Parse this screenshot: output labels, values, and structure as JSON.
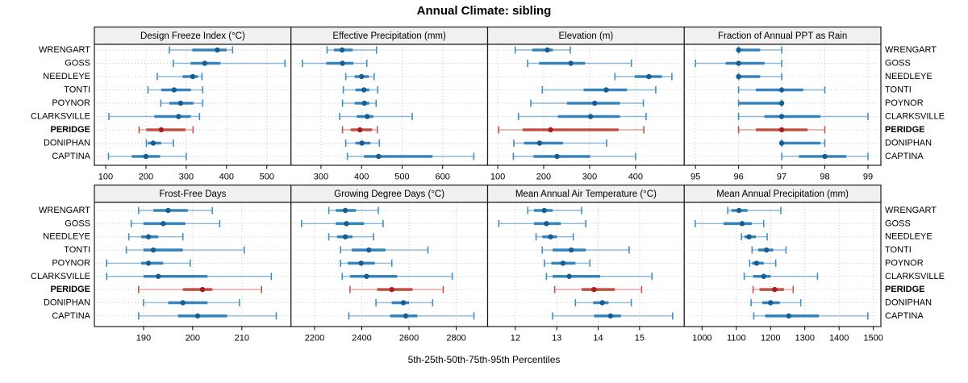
{
  "title": "Annual Climate: sibling",
  "caption": "5th-25th-50th-75th-95th Percentiles",
  "percentile_levels": [
    5,
    25,
    50,
    75,
    95
  ],
  "sites": [
    "WRENGART",
    "GOSS",
    "NEEDLEYE",
    "TONTI",
    "POYNOR",
    "CLARKSVILLE",
    "PERIDGE",
    "DONIPHAN",
    "CAPTINA"
  ],
  "highlight_site": "PERIDGE",
  "colors": {
    "blue": {
      "dot": "#155d92",
      "bar": "#2076b4",
      "whisker": "#8ab8d8",
      "cap": "#3f8fc5"
    },
    "red": {
      "dot": "#a71e22",
      "bar": "#c0392b",
      "whisker": "#e2a09a",
      "cap": "#c9534c"
    },
    "strip_bg": "#f0f0f0",
    "panel_border": "#1a1a1a",
    "grid": "#c4c4c4",
    "text": "#000000"
  },
  "chart_data": [
    {
      "type": "percentile-dotplot",
      "title": "Design Freeze Index (°C)",
      "row": 0,
      "col": 0,
      "xlim": [
        72,
        560
      ],
      "ticks": [
        100,
        200,
        300,
        400,
        500
      ],
      "values": [
        [
          258,
          315,
          377,
          400,
          415
        ],
        [
          268,
          311,
          346,
          385,
          545
        ],
        [
          228,
          291,
          316,
          329,
          339
        ],
        [
          205,
          238,
          270,
          311,
          341
        ],
        [
          237,
          258,
          286,
          318,
          341
        ],
        [
          108,
          221,
          281,
          311,
          333
        ],
        [
          183,
          201,
          238,
          298,
          317
        ],
        [
          201,
          205,
          218,
          238,
          268
        ],
        [
          107,
          165,
          200,
          235,
          300
        ]
      ]
    },
    {
      "type": "percentile-dotplot",
      "title": "Effective Precipitation (mm)",
      "row": 0,
      "col": 1,
      "xlim": [
        226,
        711
      ],
      "ticks": [
        300,
        400,
        500,
        600
      ],
      "values": [
        [
          315,
          332,
          352,
          378,
          437
        ],
        [
          254,
          313,
          353,
          380,
          413
        ],
        [
          361,
          383,
          400,
          418,
          431
        ],
        [
          355,
          385,
          406,
          419,
          440
        ],
        [
          353,
          383,
          407,
          419,
          436
        ],
        [
          346,
          388,
          414,
          429,
          525
        ],
        [
          353,
          373,
          396,
          426,
          439
        ],
        [
          361,
          385,
          401,
          422,
          444
        ],
        [
          365,
          406,
          442,
          575,
          677
        ]
      ]
    },
    {
      "type": "percentile-dotplot",
      "title": "Elevation (m)",
      "row": 0,
      "col": 2,
      "xlim": [
        78,
        506
      ],
      "ticks": [
        100,
        200,
        300,
        400
      ],
      "values": [
        [
          138,
          175,
          208,
          220,
          258
        ],
        [
          165,
          190,
          259,
          290,
          391
        ],
        [
          355,
          398,
          429,
          457,
          479
        ],
        [
          197,
          287,
          336,
          381,
          444
        ],
        [
          172,
          251,
          311,
          366,
          417
        ],
        [
          145,
          231,
          302,
          366,
          423
        ],
        [
          102,
          154,
          215,
          363,
          418
        ],
        [
          135,
          157,
          191,
          242,
          337
        ],
        [
          134,
          178,
          229,
          301,
          400
        ]
      ]
    },
    {
      "type": "percentile-dotplot",
      "title": "Fraction of Annual PPT as Rain",
      "row": 0,
      "col": 3,
      "xlim": [
        94.74,
        99.3
      ],
      "ticks": [
        95,
        96,
        97,
        98,
        99
      ],
      "values": [
        [
          96,
          96,
          96,
          96.5,
          97
        ],
        [
          95,
          95.7,
          96,
          96.6,
          97
        ],
        [
          96,
          96,
          96,
          96.5,
          97
        ],
        [
          96,
          96.4,
          97,
          97.5,
          98
        ],
        [
          96,
          96,
          97,
          97,
          97
        ],
        [
          96,
          96.6,
          97,
          97.9,
          99
        ],
        [
          96,
          96.4,
          97,
          97.6,
          98
        ],
        [
          97,
          97,
          97,
          97.9,
          98
        ],
        [
          97,
          97.4,
          98,
          98.5,
          99
        ]
      ]
    },
    {
      "type": "percentile-dotplot",
      "title": "Frost-Free Days",
      "row": 1,
      "col": 0,
      "xlim": [
        180,
        220
      ],
      "ticks": [
        190,
        200,
        210
      ],
      "values": [
        [
          189,
          192,
          195,
          199,
          204
        ],
        [
          187.5,
          190,
          194,
          198.5,
          205.5
        ],
        [
          187,
          189.5,
          191,
          193,
          198
        ],
        [
          186.5,
          190,
          192,
          198,
          210.5
        ],
        [
          182.5,
          189.5,
          191,
          194,
          199.5
        ],
        [
          182.5,
          190,
          193,
          203,
          216
        ],
        [
          189,
          198,
          202,
          204,
          214
        ],
        [
          190,
          195,
          198,
          203,
          209.5
        ],
        [
          189,
          197,
          201,
          207,
          217
        ]
      ]
    },
    {
      "type": "percentile-dotplot",
      "title": "Growing Degree Days (°C)",
      "row": 1,
      "col": 1,
      "xlim": [
        2100,
        2933
      ],
      "ticks": [
        2200,
        2400,
        2600,
        2800
      ],
      "values": [
        [
          2260,
          2290,
          2330,
          2375,
          2470
        ],
        [
          2145,
          2290,
          2335,
          2410,
          2490
        ],
        [
          2260,
          2295,
          2330,
          2360,
          2450
        ],
        [
          2310,
          2357,
          2430,
          2500,
          2680
        ],
        [
          2310,
          2340,
          2397,
          2455,
          2527
        ],
        [
          2317,
          2350,
          2420,
          2550,
          2783
        ],
        [
          2350,
          2465,
          2527,
          2615,
          2745
        ],
        [
          2460,
          2527,
          2576,
          2600,
          2700
        ],
        [
          2345,
          2520,
          2586,
          2635,
          2875
        ]
      ]
    },
    {
      "type": "percentile-dotplot",
      "title": "Mean Annual Air Temperature (°C)",
      "row": 1,
      "col": 2,
      "xlim": [
        11.33,
        16.08
      ],
      "ticks": [
        12,
        13,
        14,
        15
      ],
      "values": [
        [
          12.3,
          12.45,
          12.7,
          12.9,
          13.6
        ],
        [
          11.6,
          12.45,
          12.75,
          13.1,
          13.7
        ],
        [
          12.5,
          12.65,
          12.85,
          13.0,
          13.4
        ],
        [
          12.65,
          12.9,
          13.35,
          13.7,
          14.75
        ],
        [
          12.7,
          12.87,
          13.15,
          13.45,
          13.8
        ],
        [
          12.75,
          12.9,
          13.3,
          14.05,
          15.3
        ],
        [
          12.95,
          13.6,
          13.9,
          14.4,
          15.05
        ],
        [
          13.45,
          13.88,
          14.1,
          14.25,
          14.8
        ],
        [
          12.9,
          13.9,
          14.3,
          14.55,
          15.8
        ]
      ]
    },
    {
      "type": "percentile-dotplot",
      "title": "Mean Annual Precipitation (mm)",
      "row": 1,
      "col": 3,
      "xlim": [
        948,
        1522
      ],
      "ticks": [
        1000,
        1100,
        1200,
        1300,
        1400,
        1500
      ],
      "values": [
        [
          1075,
          1086,
          1108,
          1133,
          1230
        ],
        [
          980,
          1063,
          1117,
          1145,
          1180
        ],
        [
          1115,
          1124,
          1137,
          1157,
          1190
        ],
        [
          1146,
          1164,
          1188,
          1208,
          1245
        ],
        [
          1139,
          1146,
          1159,
          1180,
          1215
        ],
        [
          1123,
          1149,
          1180,
          1200,
          1337
        ],
        [
          1149,
          1168,
          1212,
          1239,
          1266
        ],
        [
          1143,
          1176,
          1200,
          1227,
          1288
        ],
        [
          1151,
          1184,
          1253,
          1341,
          1484
        ]
      ]
    }
  ]
}
